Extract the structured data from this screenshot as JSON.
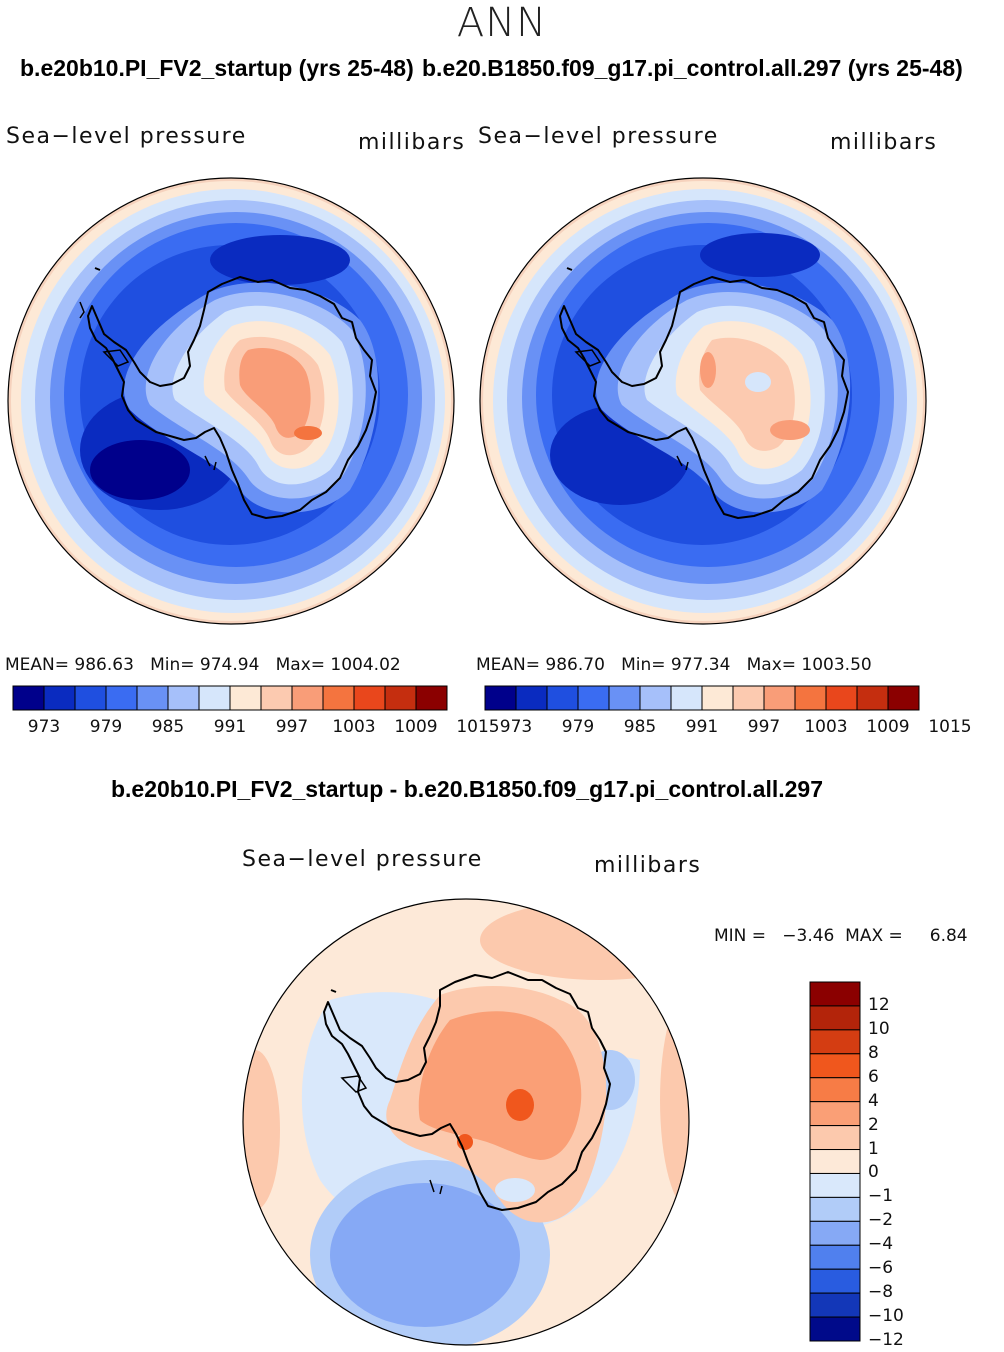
{
  "figure": {
    "title": "ANN",
    "case1_title": "b.e20b10.PI_FV2_startup (yrs 25-48)",
    "case2_title": "b.e20.B1850.f09_g17.pi_control.all.297 (yrs 25-48)",
    "diff_title": "b.e20b10.PI_FV2_startup - b.e20.B1850.f09_g17.pi_control.all.297"
  },
  "panels": [
    {
      "variable": "Sea−level pressure",
      "units": "millibars",
      "stats": "MEAN= 986.63   Min= 974.94   Max= 1004.02",
      "mean": 986.63,
      "min": 974.94,
      "max": 1004.02
    },
    {
      "variable": "Sea−level pressure",
      "units": "millibars",
      "stats": "MEAN= 986.70   Min= 977.34   Max= 1003.50",
      "mean": 986.7,
      "min": 977.34,
      "max": 1003.5
    }
  ],
  "diff_panel": {
    "variable": "Sea−level pressure",
    "units": "millibars",
    "stats": "MIN =   −3.46  MAX =     6.84",
    "min": -3.46,
    "max": 6.84
  },
  "colorbar_main": {
    "tick_labels": [
      "973",
      "979",
      "985",
      "991",
      "997",
      "1003",
      "1009",
      "1015"
    ],
    "colors": [
      "#00008b",
      "#0a2bc0",
      "#1f4fe0",
      "#3a6cf2",
      "#6991f5",
      "#a6c0fa",
      "#d6e6fb",
      "#fde9d6",
      "#fccab0",
      "#f99d78",
      "#f4743f",
      "#e9471c",
      "#c52e0f",
      "#8b0000"
    ]
  },
  "colorbar_diff": {
    "tick_labels": [
      "12",
      "10",
      "8",
      "6",
      "4",
      "2",
      "1",
      "0",
      "−1",
      "−2",
      "−4",
      "−6",
      "−8",
      "−10",
      "−12"
    ],
    "colors": [
      "#8b0000",
      "#b3240a",
      "#d43d12",
      "#f0571d",
      "#f77c46",
      "#fa9f76",
      "#fcc9ad",
      "#fde9d8",
      "#d9e8fb",
      "#b1ccf8",
      "#86a9f5",
      "#5080ee",
      "#295ce0",
      "#1337b8",
      "#000a8a"
    ]
  }
}
